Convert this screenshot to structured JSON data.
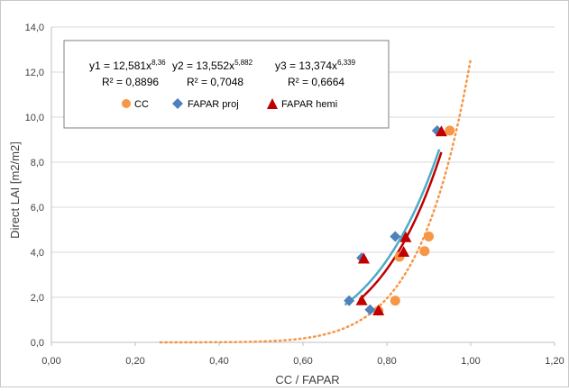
{
  "chart_data": {
    "type": "scatter",
    "xlabel": "CC / FAPAR",
    "ylabel": "Direct LAI [m2/m2]",
    "xlim": [
      0,
      1.2
    ],
    "ylim": [
      0,
      14
    ],
    "xticks": [
      "0,00",
      "0,20",
      "0,40",
      "0,60",
      "0,80",
      "1,00",
      "1,20"
    ],
    "yticks": [
      "0,0",
      "2,0",
      "4,0",
      "6,0",
      "8,0",
      "10,0",
      "12,0",
      "14,0"
    ],
    "grid": "horizontal",
    "legend_position": "top-left",
    "series": [
      {
        "name": "CC",
        "marker": "circle",
        "color": "#F79646",
        "points": [
          [
            0.82,
            1.85
          ],
          [
            0.78,
            1.4
          ],
          [
            0.83,
            3.8
          ],
          [
            0.89,
            4.05
          ],
          [
            0.9,
            4.7
          ],
          [
            0.95,
            9.4
          ]
        ],
        "fit": {
          "a": 12.581,
          "b": 8.36,
          "x_range": [
            0.26,
            1.0
          ],
          "color": "#F79646",
          "style": "dotted"
        }
      },
      {
        "name": "FAPAR proj",
        "marker": "diamond",
        "color": "#4F81BD",
        "points": [
          [
            0.71,
            1.85
          ],
          [
            0.76,
            1.45
          ],
          [
            0.74,
            3.75
          ],
          [
            0.82,
            4.7
          ],
          [
            0.92,
            9.4
          ]
        ],
        "fit": {
          "a": 13.552,
          "b": 5.882,
          "x_range": [
            0.7,
            0.925
          ],
          "color": "#4BACC6",
          "style": "solid"
        }
      },
      {
        "name": "FAPAR hemi",
        "marker": "triangle",
        "color": "#C00000",
        "points": [
          [
            0.74,
            1.85
          ],
          [
            0.78,
            1.4
          ],
          [
            0.745,
            3.7
          ],
          [
            0.84,
            4.0
          ],
          [
            0.845,
            4.65
          ],
          [
            0.93,
            9.35
          ]
        ],
        "fit": {
          "a": 13.374,
          "b": 6.339,
          "x_range": [
            0.735,
            0.93
          ],
          "color": "#C00000",
          "style": "solid"
        }
      }
    ],
    "equations": [
      {
        "prefix": "y1 = 12,581x",
        "exp": "8,36",
        "r2": "R² = 0,8896"
      },
      {
        "prefix": "y2 = 13,552x",
        "exp": "5,882",
        "r2": "R² = 0,7048"
      },
      {
        "prefix": "y3 = 13,374x",
        "exp": "6,339",
        "r2": "R² = 0,6664"
      }
    ]
  }
}
